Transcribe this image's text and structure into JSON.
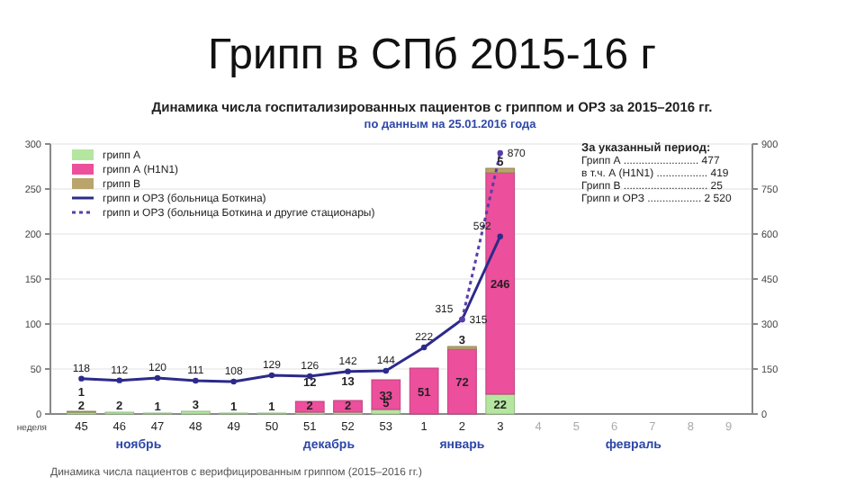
{
  "chart_data": {
    "type": "bar",
    "title": "Грипп в СПб 2015-16 г",
    "subtitle": "Динамика числа госпитализированных пациентов с гриппом и ОРЗ за 2015–2016 гг.",
    "xlabel": "неделя",
    "categories": [
      "45",
      "46",
      "47",
      "48",
      "49",
      "50",
      "51",
      "52",
      "53",
      "1",
      "2",
      "3",
      "4",
      "5",
      "6",
      "7",
      "8",
      "9"
    ],
    "stacked": true,
    "data_labels": true,
    "grid": "y",
    "legend": "top left",
    "marker": "circle",
    "ylim": [
      0,
      300
    ],
    "yticks": [
      0,
      50,
      100,
      150,
      200,
      250,
      300
    ],
    "y2lim": [
      0,
      900
    ],
    "y2ticks": [
      0,
      150,
      300,
      450,
      600,
      750,
      900
    ],
    "series": [
      {
        "name": "грипп А",
        "color": "#b5e6a0",
        "values": [
          2,
          2,
          1,
          3,
          1,
          1,
          2,
          2,
          5,
          null,
          null,
          22,
          null,
          null,
          null,
          null,
          null,
          null
        ]
      },
      {
        "name": "грипп А (H1N1)",
        "color": "#ec4f9c",
        "values": [
          null,
          null,
          null,
          null,
          null,
          null,
          12,
          13,
          33,
          51,
          72,
          246,
          null,
          null,
          null,
          null,
          null,
          null
        ]
      },
      {
        "name": "грипп В",
        "color": "#b9a46c",
        "values": [
          1,
          null,
          null,
          null,
          null,
          null,
          null,
          null,
          null,
          null,
          3,
          5,
          null,
          null,
          null,
          null,
          null,
          null
        ]
      },
      {
        "name": "грипп и ОРЗ (больница Боткина)",
        "type": "line",
        "axis": "y2",
        "line_style": "solid",
        "color": "#2c2a8a",
        "values": [
          118,
          112,
          120,
          111,
          108,
          129,
          126,
          142,
          144,
          222,
          315,
          592,
          null,
          null,
          null,
          null,
          null,
          null
        ]
      },
      {
        "name": "грипп и ОРЗ (больница Боткина и другие стационары)",
        "type": "line",
        "axis": "y2",
        "line_style": "dotted",
        "color": "#5a3ea6",
        "values": [
          null,
          null,
          null,
          null,
          null,
          null,
          null,
          null,
          null,
          null,
          315,
          870,
          null,
          null,
          null,
          null,
          null,
          null
        ]
      }
    ],
    "annotations": [
      "по данным на 25.01.2016 года",
      "За указанный период:",
      "Грипп А ......................... 477",
      "в т.ч. А (H1N1) ................. 419",
      "Грипп В ............................ 25",
      "Грипп и ОРЗ .................. 2 520",
      "ноябрь",
      "декабрь",
      "январь",
      "февраль",
      "Динамика числа пациентов с верифицированным гриппом (2015–2016 гг.)"
    ]
  }
}
